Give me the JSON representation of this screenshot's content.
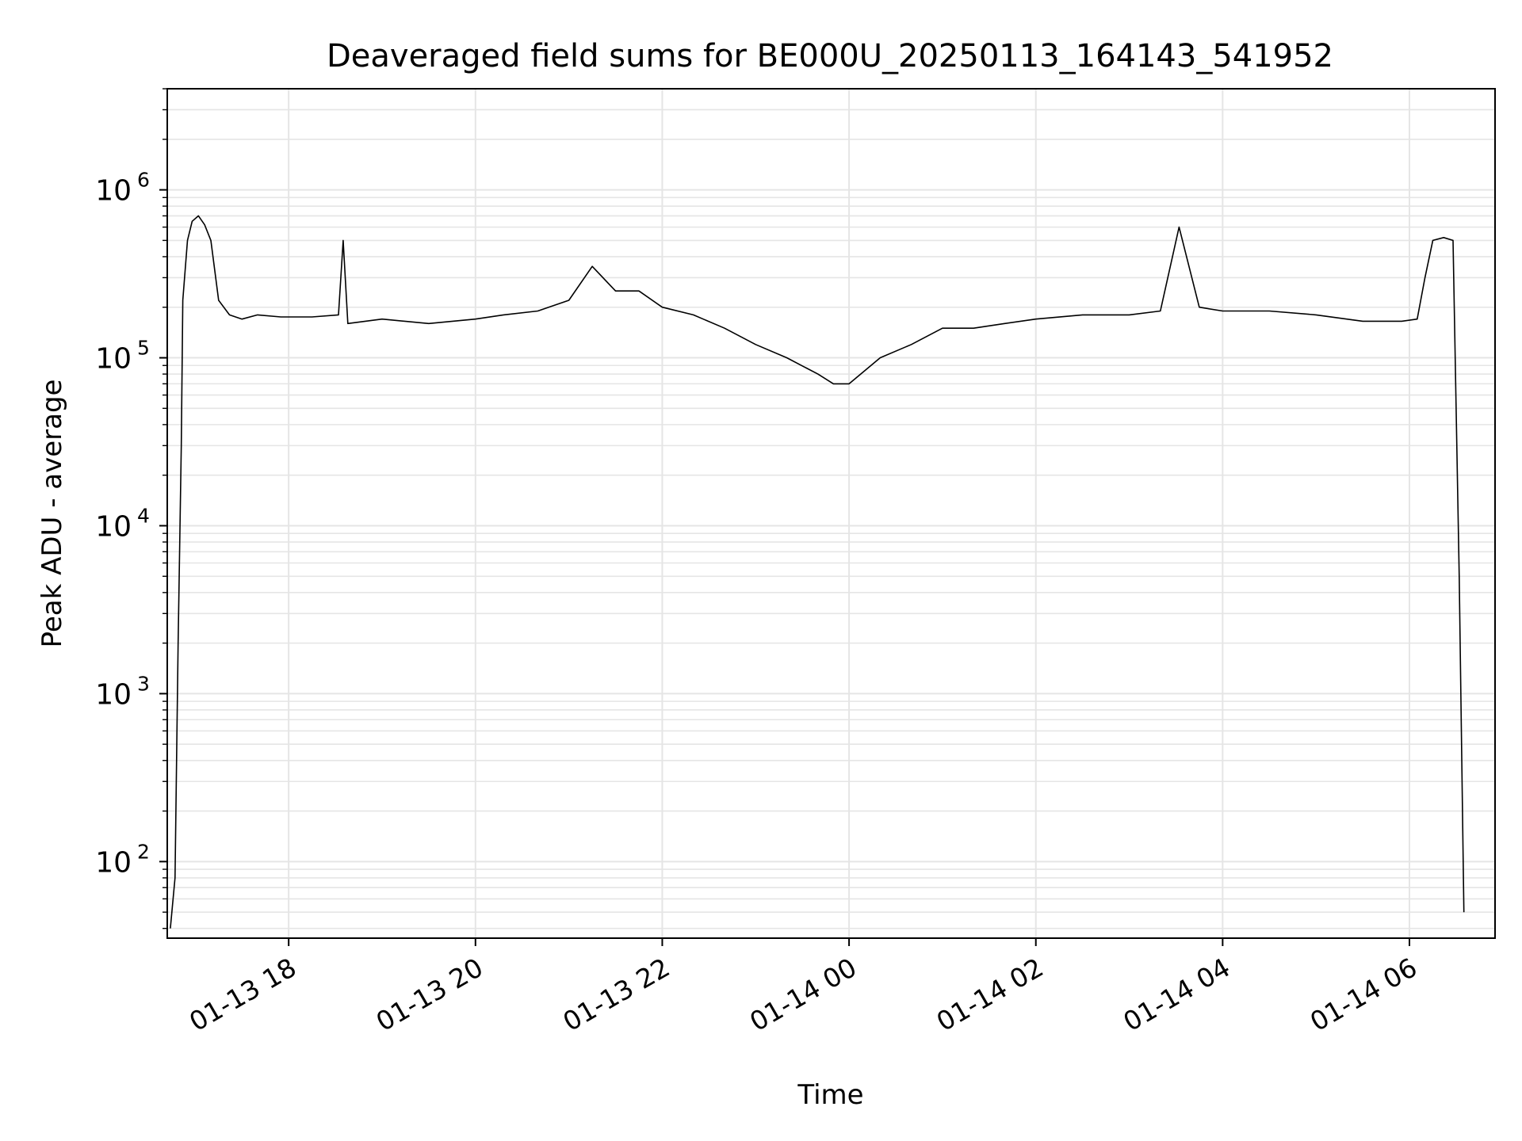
{
  "chart_data": {
    "type": "line",
    "title": "Deaveraged field sums for BE000U_20250113_164143_541952",
    "xlabel": "Time",
    "ylabel": "Peak ADU - average",
    "yscale": "log",
    "ylim": [
      35,
      4000000
    ],
    "xlim": [
      "2025-01-13 16:42",
      "2025-01-14 06:55"
    ],
    "grid": true,
    "line_color": "#000000",
    "grid_color": "#e5e5e5",
    "x_ticks": [
      {
        "value": "2025-01-13 18:00",
        "label": "01-13 18"
      },
      {
        "value": "2025-01-13 20:00",
        "label": "01-13 20"
      },
      {
        "value": "2025-01-13 22:00",
        "label": "01-13 22"
      },
      {
        "value": "2025-01-14 00:00",
        "label": "01-14 00"
      },
      {
        "value": "2025-01-14 02:00",
        "label": "01-14 02"
      },
      {
        "value": "2025-01-14 04:00",
        "label": "01-14 04"
      },
      {
        "value": "2025-01-14 06:00",
        "label": "01-14 06"
      }
    ],
    "y_ticks": [
      {
        "value": 100,
        "base": "10",
        "exp": "2"
      },
      {
        "value": 1000,
        "base": "10",
        "exp": "3"
      },
      {
        "value": 10000,
        "base": "10",
        "exp": "4"
      },
      {
        "value": 100000,
        "base": "10",
        "exp": "5"
      },
      {
        "value": 1000000,
        "base": "10",
        "exp": "6"
      }
    ],
    "series": [
      {
        "x": [
          "2025-01-13 16:44",
          "2025-01-13 16:47",
          "2025-01-13 16:49",
          "2025-01-13 16:51",
          "2025-01-13 16:52",
          "2025-01-13 16:55",
          "2025-01-13 16:58",
          "2025-01-13 17:02",
          "2025-01-13 17:06",
          "2025-01-13 17:10",
          "2025-01-13 17:15",
          "2025-01-13 17:22",
          "2025-01-13 17:30",
          "2025-01-13 17:40",
          "2025-01-13 17:55",
          "2025-01-13 18:15",
          "2025-01-13 18:32",
          "2025-01-13 18:35",
          "2025-01-13 18:38",
          "2025-01-13 19:00",
          "2025-01-13 19:30",
          "2025-01-13 20:00",
          "2025-01-13 20:18",
          "2025-01-13 20:40",
          "2025-01-13 21:00",
          "2025-01-13 21:15",
          "2025-01-13 21:30",
          "2025-01-13 21:45",
          "2025-01-13 22:00",
          "2025-01-13 22:20",
          "2025-01-13 22:40",
          "2025-01-13 23:00",
          "2025-01-13 23:20",
          "2025-01-13 23:40",
          "2025-01-13 23:50",
          "2025-01-14 00:00",
          "2025-01-14 00:20",
          "2025-01-14 00:40",
          "2025-01-14 01:00",
          "2025-01-14 01:20",
          "2025-01-14 01:40",
          "2025-01-14 02:00",
          "2025-01-14 02:30",
          "2025-01-14 03:00",
          "2025-01-14 03:20",
          "2025-01-14 03:32",
          "2025-01-14 03:45",
          "2025-01-14 04:00",
          "2025-01-14 04:30",
          "2025-01-14 05:00",
          "2025-01-14 05:30",
          "2025-01-14 05:55",
          "2025-01-14 06:05",
          "2025-01-14 06:10",
          "2025-01-14 06:15",
          "2025-01-14 06:22",
          "2025-01-14 06:28",
          "2025-01-14 06:32",
          "2025-01-14 06:35"
        ],
        "y": [
          40,
          80,
          2000,
          30000,
          220000,
          500000,
          650000,
          700000,
          620000,
          500000,
          220000,
          180000,
          170000,
          180000,
          175000,
          175000,
          180000,
          500000,
          160000,
          170000,
          160000,
          170000,
          180000,
          190000,
          220000,
          350000,
          250000,
          250000,
          200000,
          180000,
          150000,
          120000,
          100000,
          80000,
          70000,
          70000,
          100000,
          120000,
          150000,
          150000,
          160000,
          170000,
          180000,
          180000,
          190000,
          600000,
          200000,
          190000,
          190000,
          180000,
          165000,
          165000,
          170000,
          300000,
          500000,
          520000,
          500000,
          5000,
          50
        ]
      }
    ]
  }
}
